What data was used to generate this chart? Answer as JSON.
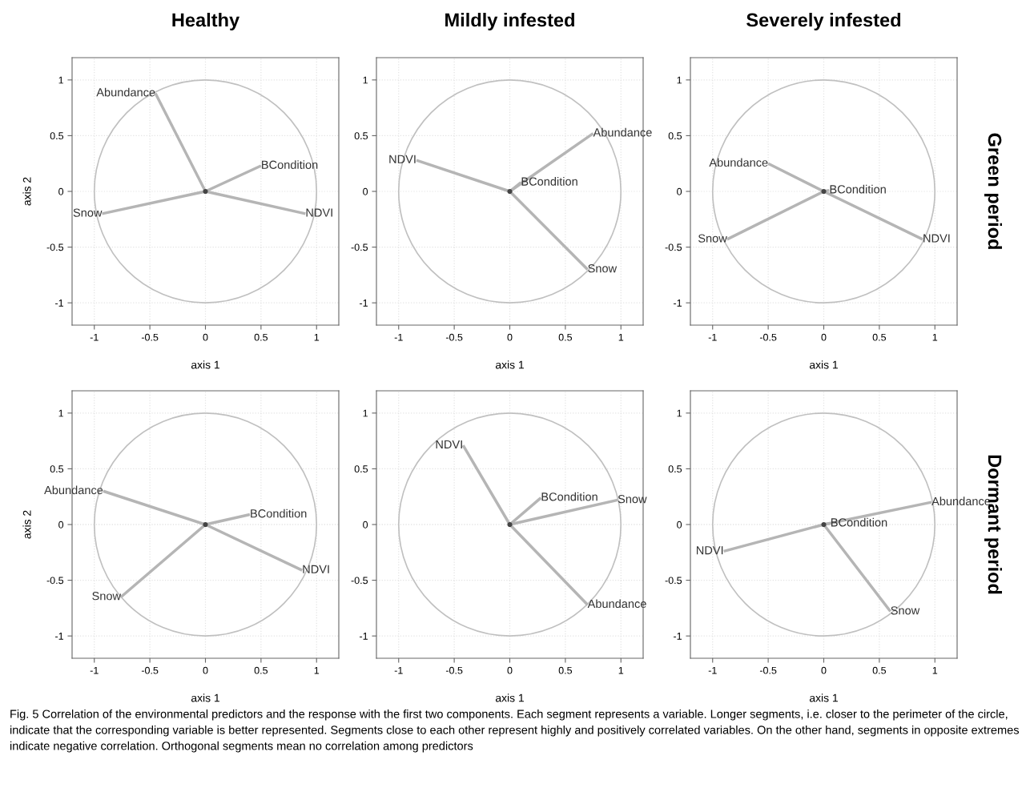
{
  "chart_data": [
    {
      "type": "line",
      "title": "Healthy",
      "xlabel": "axis 1",
      "ylabel": "axis 2",
      "xlim": [
        -1.2,
        1.2
      ],
      "ylim": [
        -1.2,
        1.2
      ],
      "xticks": [
        -1,
        -0.5,
        0,
        0.5,
        1
      ],
      "yticks": [
        -1,
        -0.5,
        0,
        0.5,
        1
      ],
      "grid": true,
      "series": [
        {
          "name": "Abundance",
          "color": "#b5b5b5",
          "x": [
            0,
            -0.45
          ],
          "values": [
            0,
            0.88
          ]
        },
        {
          "name": "BCondition",
          "color": "#b5b5b5",
          "x": [
            0,
            0.5
          ],
          "values": [
            0,
            0.23
          ]
        },
        {
          "name": "NDVI",
          "color": "#b5b5b5",
          "x": [
            0,
            0.9
          ],
          "values": [
            0,
            -0.2
          ]
        },
        {
          "name": "Snow",
          "color": "#b5b5b5",
          "x": [
            0,
            -0.93
          ],
          "values": [
            0,
            -0.2
          ]
        }
      ]
    },
    {
      "type": "line",
      "title": "Mildly infested",
      "xlabel": "axis 1",
      "xlim": [
        -1.2,
        1.2
      ],
      "ylim": [
        -1.2,
        1.2
      ],
      "xticks": [
        -1,
        -0.5,
        0,
        0.5,
        1
      ],
      "yticks": [
        -1,
        -0.5,
        0,
        0.5,
        1
      ],
      "grid": true,
      "series": [
        {
          "name": "Abundance",
          "color": "#b5b5b5",
          "x": [
            0,
            0.75
          ],
          "values": [
            0,
            0.52
          ]
        },
        {
          "name": "BCondition",
          "color": "#b5b5b5",
          "x": [
            0,
            0.1
          ],
          "values": [
            0,
            0.08
          ]
        },
        {
          "name": "NDVI",
          "color": "#b5b5b5",
          "x": [
            0,
            -0.84
          ],
          "values": [
            0,
            0.28
          ]
        },
        {
          "name": "Snow",
          "color": "#b5b5b5",
          "x": [
            0,
            0.7
          ],
          "values": [
            0,
            -0.7
          ]
        }
      ]
    },
    {
      "type": "line",
      "title": "Severely infested",
      "xlabel": "axis 1",
      "xlim": [
        -1.2,
        1.2
      ],
      "ylim": [
        -1.2,
        1.2
      ],
      "xticks": [
        -1,
        -0.5,
        0,
        0.5,
        1
      ],
      "yticks": [
        -1,
        -0.5,
        0,
        0.5,
        1
      ],
      "grid": true,
      "annotations": [
        "Green period"
      ],
      "series": [
        {
          "name": "Abundance",
          "color": "#b5b5b5",
          "x": [
            0,
            -0.5
          ],
          "values": [
            0,
            0.25
          ]
        },
        {
          "name": "BCondition",
          "color": "#b5b5b5",
          "x": [
            0,
            0.05
          ],
          "values": [
            0,
            0.01
          ]
        },
        {
          "name": "NDVI",
          "color": "#b5b5b5",
          "x": [
            0,
            0.89
          ],
          "values": [
            0,
            -0.43
          ]
        },
        {
          "name": "Snow",
          "color": "#b5b5b5",
          "x": [
            0,
            -0.87
          ],
          "values": [
            0,
            -0.43
          ]
        }
      ]
    },
    {
      "type": "line",
      "xlabel": "axis 1",
      "ylabel": "axis 2",
      "xlim": [
        -1.2,
        1.2
      ],
      "ylim": [
        -1.2,
        1.2
      ],
      "xticks": [
        -1,
        -0.5,
        0,
        0.5,
        1
      ],
      "yticks": [
        -1,
        -0.5,
        0,
        0.5,
        1
      ],
      "grid": true,
      "series": [
        {
          "name": "Abundance",
          "color": "#b5b5b5",
          "x": [
            0,
            -0.92
          ],
          "values": [
            0,
            0.3
          ]
        },
        {
          "name": "BCondition",
          "color": "#b5b5b5",
          "x": [
            0,
            0.4
          ],
          "values": [
            0,
            0.09
          ]
        },
        {
          "name": "NDVI",
          "color": "#b5b5b5",
          "x": [
            0,
            0.87
          ],
          "values": [
            0,
            -0.41
          ]
        },
        {
          "name": "Snow",
          "color": "#b5b5b5",
          "x": [
            0,
            -0.76
          ],
          "values": [
            0,
            -0.65
          ]
        }
      ]
    },
    {
      "type": "line",
      "xlabel": "axis 1",
      "xlim": [
        -1.2,
        1.2
      ],
      "ylim": [
        -1.2,
        1.2
      ],
      "xticks": [
        -1,
        -0.5,
        0,
        0.5,
        1
      ],
      "yticks": [
        -1,
        -0.5,
        0,
        0.5,
        1
      ],
      "grid": true,
      "series": [
        {
          "name": "Abundance",
          "color": "#b5b5b5",
          "x": [
            0,
            0.7
          ],
          "values": [
            0,
            -0.72
          ]
        },
        {
          "name": "BCondition",
          "color": "#b5b5b5",
          "x": [
            0,
            0.28
          ],
          "values": [
            0,
            0.24
          ]
        },
        {
          "name": "NDVI",
          "color": "#b5b5b5",
          "x": [
            0,
            -0.42
          ],
          "values": [
            0,
            0.71
          ]
        },
        {
          "name": "Snow",
          "color": "#b5b5b5",
          "x": [
            0,
            0.97
          ],
          "values": [
            0,
            0.22
          ]
        }
      ]
    },
    {
      "type": "line",
      "xlabel": "axis 1",
      "xlim": [
        -1.2,
        1.2
      ],
      "ylim": [
        -1.2,
        1.2
      ],
      "xticks": [
        -1,
        -0.5,
        0,
        0.5,
        1
      ],
      "yticks": [
        -1,
        -0.5,
        0,
        0.5,
        1
      ],
      "grid": true,
      "annotations": [
        "Dormant period",
        "Fig. 5 Correlation of the environmental predictors and the response with the first two components. Each segment represents a variable. Longer segments, i.e. closer to the perimeter of the circle, indicate that the corresponding variable is better represented. Segments close to each other represent highly and positively correlated variables. On the other hand, segments in opposite extremes indicate negative correlation. Orthogonal segments mean no correlation among predictors"
      ],
      "series": [
        {
          "name": "Abundance",
          "color": "#b5b5b5",
          "x": [
            0,
            0.97
          ],
          "values": [
            0,
            0.2
          ]
        },
        {
          "name": "BCondition",
          "color": "#b5b5b5",
          "x": [
            0,
            0.06
          ],
          "values": [
            0,
            0.01
          ]
        },
        {
          "name": "NDVI",
          "color": "#b5b5b5",
          "x": [
            0,
            -0.9
          ],
          "values": [
            0,
            -0.24
          ]
        },
        {
          "name": "Snow",
          "color": "#b5b5b5",
          "x": [
            0,
            0.6
          ],
          "values": [
            0,
            -0.78
          ]
        }
      ]
    }
  ]
}
